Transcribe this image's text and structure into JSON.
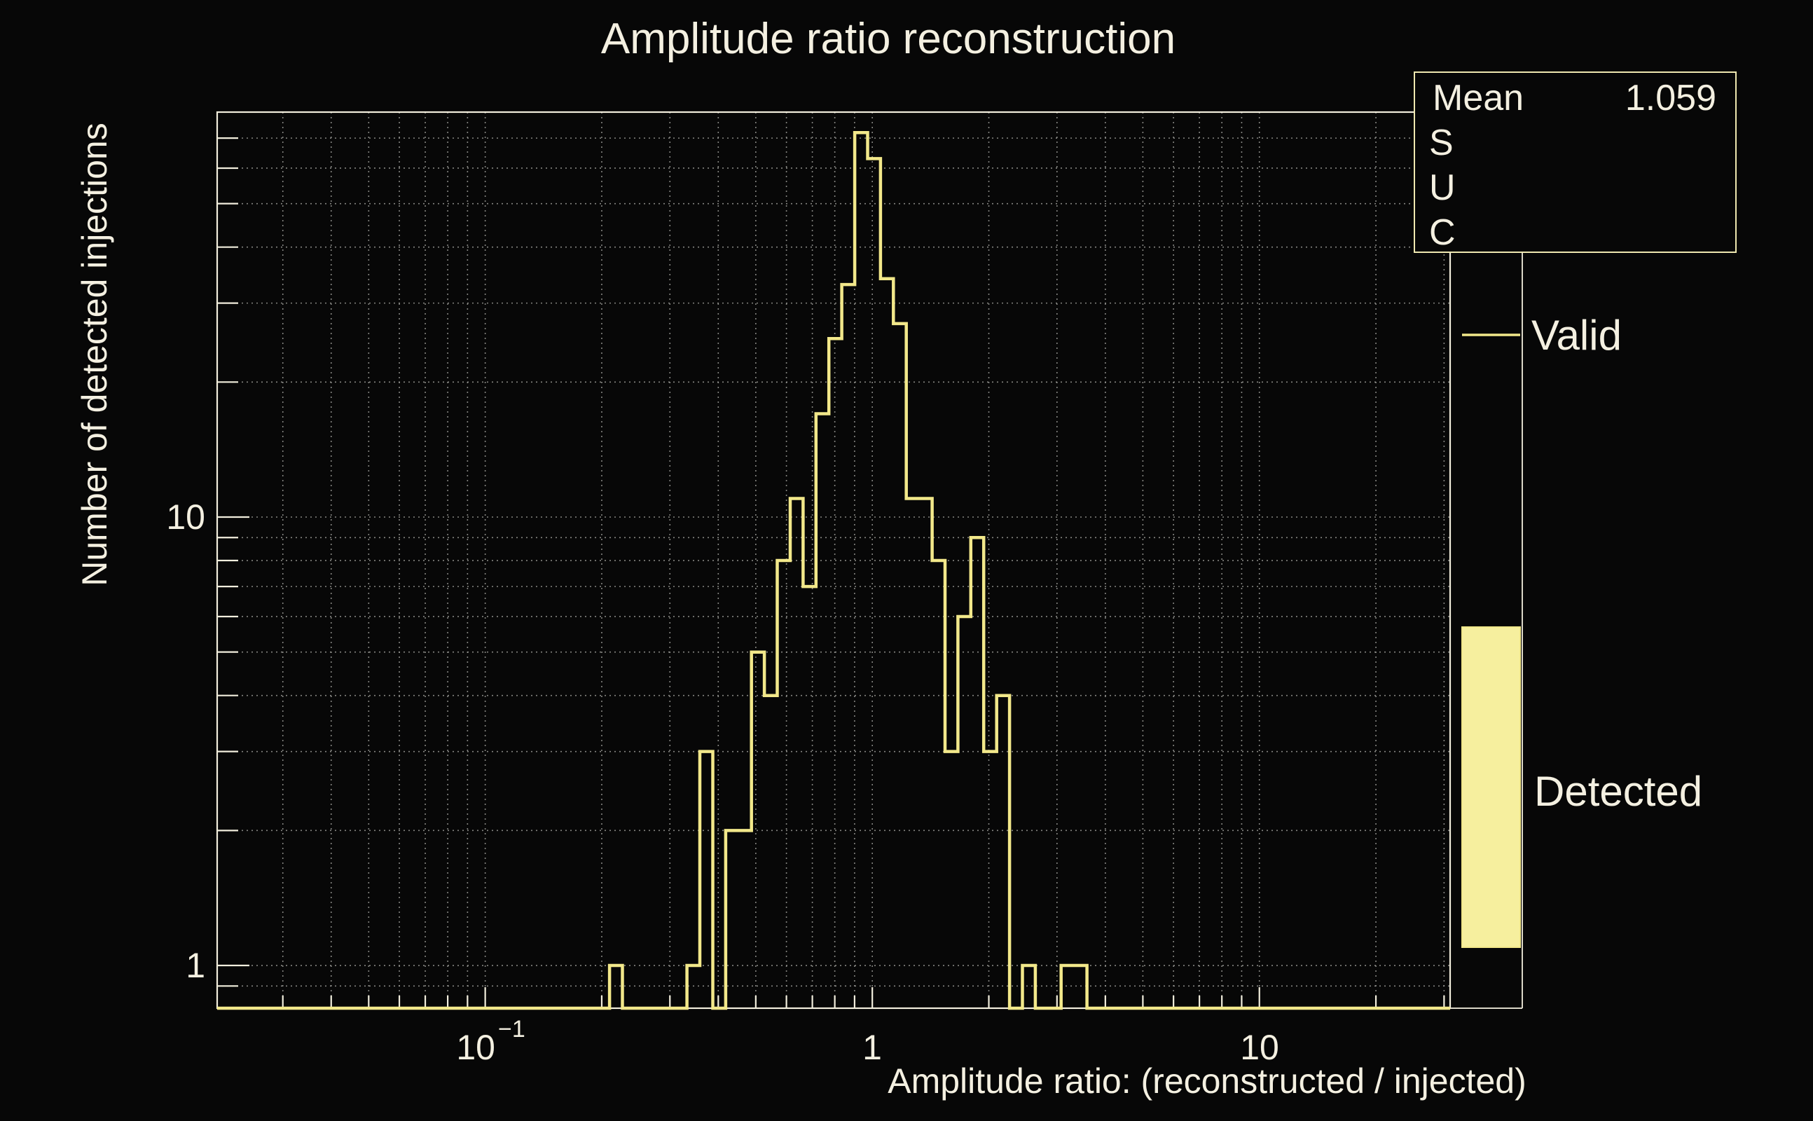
{
  "title": {
    "text": "Amplitude ratio reconstruction"
  },
  "stats_box": {
    "rows": [
      {
        "label": "Mean",
        "value": "1.059"
      },
      {
        "label": "S",
        "value": ""
      },
      {
        "label": "U",
        "value": ""
      },
      {
        "label": "C",
        "value": ""
      }
    ]
  },
  "legend": {
    "items": [
      {
        "label": "Valid",
        "marker": "line"
      },
      {
        "label": "Detected",
        "marker": "filled-box"
      }
    ]
  },
  "colors": {
    "background": "#070707",
    "axis_and_text": "#f2eedd",
    "histogram_line": "#f2e88a",
    "detected_fill": "#f6ef9e",
    "grid": "#9b9b97",
    "stats_border": "#efe8b0"
  },
  "chart_data": {
    "type": "bar",
    "subtype": "step-histogram",
    "title": "Amplitude ratio reconstruction",
    "xlabel": "Amplitude ratio: (reconstructed / injected)",
    "ylabel": "Number of detected injections",
    "series_name": "Valid",
    "x_scale": "log",
    "y_scale": "log",
    "xlim": [
      0.0203,
      31.1
    ],
    "ylim": [
      0.803,
      80
    ],
    "grid": true,
    "legend_position": "right",
    "mean": 1.059,
    "bin_start": 0.2095,
    "bins_per_decade": 30,
    "counts": [
      1,
      0,
      0,
      0,
      0,
      0,
      1,
      3,
      0,
      2,
      2,
      5,
      4,
      8,
      11,
      7,
      17,
      25,
      33,
      72,
      63,
      34,
      27,
      11,
      11,
      8,
      3,
      6,
      9,
      3,
      4,
      0,
      1,
      0,
      0,
      1,
      1
    ],
    "x_tick_labels": [
      {
        "base": "10",
        "sup": "−1",
        "value": 0.1
      },
      {
        "base": "1",
        "sup": "",
        "value": 1
      },
      {
        "base": "10",
        "sup": "",
        "value": 10
      }
    ],
    "y_tick_labels": [
      {
        "text": "10",
        "value": 10
      },
      {
        "text": "1",
        "value": 1
      }
    ]
  }
}
